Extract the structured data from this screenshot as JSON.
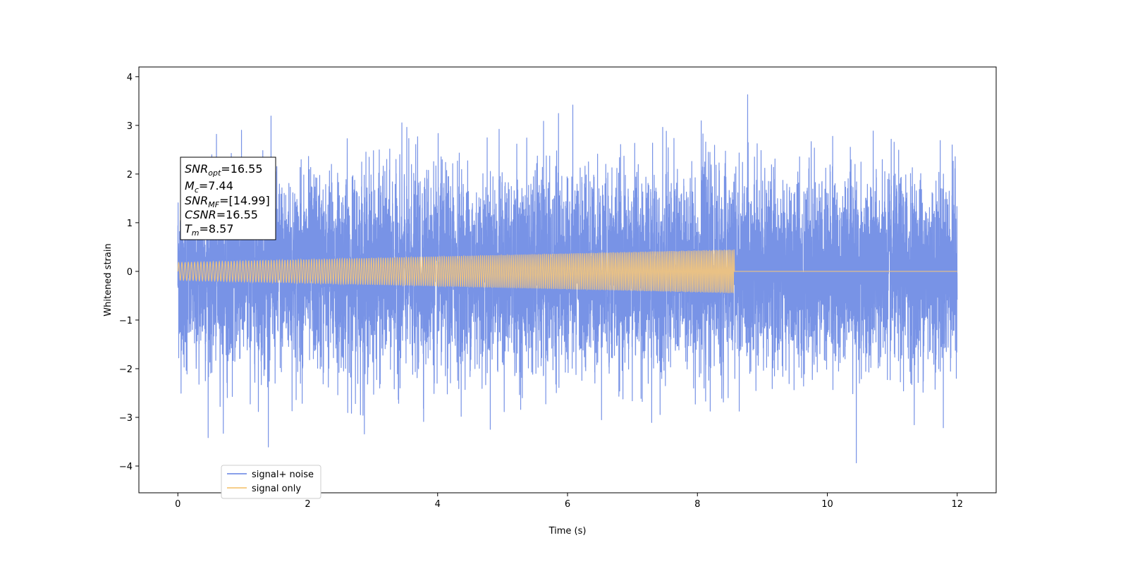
{
  "chart_data": {
    "type": "line",
    "xlabel": "Time (s)",
    "ylabel": "Whitened strain",
    "xlim": [
      -0.6,
      12.6
    ],
    "ylim": [
      -4.55,
      4.2
    ],
    "x_ticks": [
      0,
      2,
      4,
      6,
      8,
      10,
      12
    ],
    "x_tick_labels": [
      "0",
      "2",
      "4",
      "6",
      "8",
      "10",
      "12"
    ],
    "y_ticks": [
      4,
      3,
      2,
      1,
      0,
      -1,
      -2,
      -3,
      -4
    ],
    "y_tick_labels": [
      "4",
      "3",
      "2",
      "1",
      "0",
      "−1",
      "−2",
      "−3",
      "−4"
    ],
    "grid": false,
    "legend_position": "bottom-left",
    "series": [
      {
        "name": "signal+ noise",
        "color": "#7893e6",
        "description_range": {
          "x": [
            0,
            12
          ],
          "y_min": -4.1,
          "y_max": 3.8,
          "typical_envelope": 2.7
        }
      },
      {
        "name": "signal only",
        "color": "#f5c77a",
        "chirp": {
          "x_start": 0,
          "x_end": 8.57,
          "amplitude_start": 0.18,
          "amplitude_end": 0.45,
          "zero_after": 8.57,
          "x_max": 12
        }
      }
    ],
    "annotation": {
      "snr_opt": {
        "symbol": "SNR",
        "sub": "opt",
        "value": "=16.55"
      },
      "mc": {
        "symbol": "M",
        "sub": "c",
        "value": "=7.44"
      },
      "snr_mf": {
        "symbol": "SNR",
        "sub": "MF",
        "value": "=[14.99]"
      },
      "csnr": {
        "symbol": "CSNR",
        "sub": "",
        "value": "=16.55"
      },
      "tm": {
        "symbol": "T",
        "sub": "m",
        "value": "=8.57"
      }
    }
  }
}
